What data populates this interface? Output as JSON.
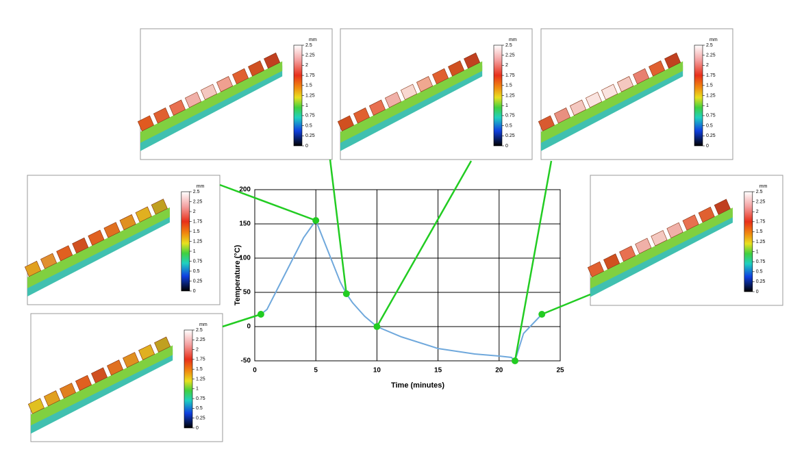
{
  "chart_data": {
    "type": "line",
    "xlabel": "Time (minutes)",
    "ylabel": "Temperature (°C)",
    "xlim": [
      0,
      25
    ],
    "xticks": [
      0,
      5,
      10,
      15,
      20,
      25
    ],
    "ylim": [
      -50,
      200
    ],
    "yticks": [
      -50,
      0,
      50,
      100,
      150,
      200
    ],
    "grid": true,
    "series": [
      {
        "color": "#6fa8dc",
        "marker": false,
        "x": [
          0.5,
          1,
          2,
          3,
          4,
          5,
          6,
          7,
          7.5,
          8,
          9,
          10,
          12,
          15,
          18,
          20,
          21,
          21.3,
          22,
          23.5
        ],
        "values": [
          18,
          25,
          60,
          95,
          130,
          155,
          110,
          65,
          48,
          35,
          15,
          0,
          -15,
          -32,
          -40,
          -43,
          -45,
          -50,
          -10,
          18
        ]
      },
      {
        "color": "#22cc22",
        "marker": true,
        "x": [
          0.5,
          5,
          7.5,
          10,
          21.3,
          23.5
        ],
        "values": [
          18,
          155,
          48,
          0,
          -50,
          18
        ]
      }
    ]
  },
  "colorbar": {
    "unit": "mm",
    "ticks": [
      2.5,
      2.25,
      2,
      1.75,
      1.5,
      1.25,
      1,
      0.75,
      0.5,
      0.25,
      0
    ]
  }
}
